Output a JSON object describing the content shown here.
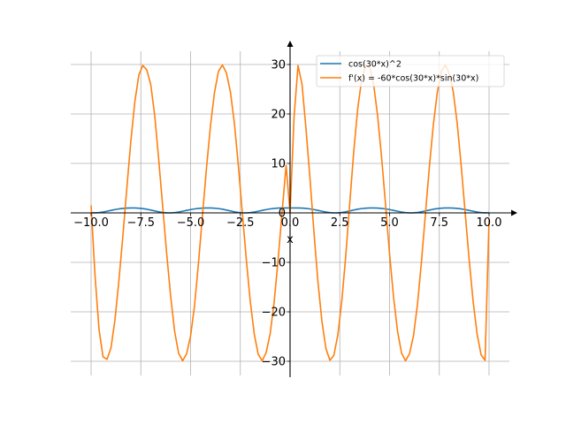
{
  "chart_data": {
    "type": "line",
    "title": "",
    "xlabel": "x",
    "ylabel": "",
    "xlim": [
      -10.0,
      10.0
    ],
    "ylim": [
      -30,
      30
    ],
    "x_ticks": [
      -10.0,
      -7.5,
      -5.0,
      -2.5,
      0.0,
      2.5,
      5.0,
      7.5,
      10.0
    ],
    "x_tick_labels": [
      "−10.0",
      "−7.5",
      "−5.0",
      "−2.5",
      "0.0",
      "2.5",
      "5.0",
      "7.5",
      "10.0"
    ],
    "y_ticks": [
      -30,
      -20,
      -10,
      0,
      10,
      20,
      30
    ],
    "y_tick_labels": [
      "−30",
      "−20",
      "−10",
      "0",
      "10",
      "20",
      "30"
    ],
    "grid": true,
    "legend_position": "top-right",
    "series": [
      {
        "name": "cos(30*x)^2",
        "color": "#1f77b4",
        "expression": "cos(30*x)^2",
        "x": [
          -10.0,
          -9.8,
          -9.6,
          -9.4,
          -9.2,
          -9.0,
          -8.8,
          -8.6,
          -8.4,
          -8.2,
          -8.0,
          -7.8,
          -7.6,
          -7.4,
          -7.2,
          -7.0,
          -6.8,
          -6.6,
          -6.4,
          -6.2,
          -6.0,
          -5.8,
          -5.6,
          -5.4,
          -5.2,
          -5.0,
          -4.8,
          -4.6,
          -4.4,
          -4.2,
          -4.0,
          -3.8,
          -3.6,
          -3.4,
          -3.2,
          -3.0,
          -2.8,
          -2.6,
          -2.4,
          -2.2,
          -2.0,
          -1.8,
          -1.6,
          -1.4,
          -1.2,
          -1.0,
          -0.8,
          -0.6,
          -0.4,
          -0.2,
          0.0,
          0.2,
          0.4,
          0.6,
          0.8,
          1.0,
          1.2,
          1.4,
          1.6,
          1.8,
          2.0,
          2.2,
          2.4,
          2.6,
          2.8,
          3.0,
          3.2,
          3.4,
          3.6,
          3.8,
          4.0,
          4.2,
          4.4,
          4.6,
          4.8,
          5.0,
          5.2,
          5.4,
          5.6,
          5.8,
          6.0,
          6.2,
          6.4,
          6.6,
          6.8,
          7.0,
          7.2,
          7.4,
          7.6,
          7.8,
          8.0,
          8.2,
          8.4,
          8.6,
          8.8,
          9.0,
          9.2,
          9.4,
          9.6,
          9.8,
          10.0
        ],
        "y": [
          0.0237,
          0.0027,
          0.0572,
          0.1754,
          0.3342,
          0.5044,
          0.6675,
          0.8063,
          0.9098,
          0.9726,
          0.9977,
          0.9911,
          0.9486,
          0.8668,
          0.7414,
          0.5738,
          0.3919,
          0.2223,
          0.09,
          0.0147,
          0.002,
          0.0568,
          0.1746,
          0.3332,
          0.5034,
          0.6666,
          0.8056,
          0.9094,
          0.9724,
          0.9976,
          0.9912,
          0.9489,
          0.8674,
          0.7422,
          0.5748,
          0.3929,
          0.2231,
          0.0905,
          0.0149,
          0.0019,
          0.0567,
          0.1744,
          0.333,
          0.5031,
          0.6663,
          0.8054,
          0.9093,
          0.9723,
          0.9976,
          0.9912,
          1.0,
          0.9912,
          0.9976,
          0.9723,
          0.9093,
          0.8054,
          0.6663,
          0.5031,
          0.333,
          0.1744,
          0.0567,
          0.0019,
          0.0149,
          0.0905,
          0.2231,
          0.3929,
          0.5748,
          0.7422,
          0.8674,
          0.9489,
          0.9912,
          0.9976,
          0.9724,
          0.9094,
          0.8056,
          0.6666,
          0.5034,
          0.3332,
          0.1746,
          0.0568,
          0.002,
          0.0147,
          0.09,
          0.2223,
          0.3919,
          0.5738,
          0.7414,
          0.8668,
          0.9486,
          0.9911,
          0.9977,
          0.9726,
          0.9098,
          0.8063,
          0.6675,
          0.5044,
          0.3342,
          0.1754,
          0.0572,
          0.0027,
          0.0237
        ]
      },
      {
        "name": "f'(x) = -60*cos(30*x)*sin(30*x)",
        "color": "#ff7f0e",
        "expression": "-60*cos(30*x)*sin(30*x)",
        "x": [
          -10.0,
          -9.8,
          -9.6,
          -9.4,
          -9.2,
          -9.0,
          -8.8,
          -8.6,
          -8.4,
          -8.2,
          -8.0,
          -7.8,
          -7.6,
          -7.4,
          -7.2,
          -7.0,
          -6.8,
          -6.6,
          -6.4,
          -6.2,
          -6.0,
          -5.8,
          -5.6,
          -5.4,
          -5.2,
          -5.0,
          -4.8,
          -4.6,
          -4.4,
          -4.2,
          -4.0,
          -3.8,
          -3.6,
          -3.4,
          -3.2,
          -3.0,
          -2.8,
          -2.6,
          -2.4,
          -2.2,
          -2.0,
          -1.8,
          -1.6,
          -1.4,
          -1.2,
          -1.0,
          -0.8,
          -0.6,
          -0.4,
          -0.2,
          0.0,
          0.2,
          0.4,
          0.6,
          0.8,
          1.0,
          1.2,
          1.4,
          1.6,
          1.8,
          2.0,
          2.2,
          2.4,
          2.6,
          2.8,
          3.0,
          3.2,
          3.4,
          3.6,
          3.8,
          4.0,
          4.2,
          4.4,
          4.6,
          4.8,
          5.0,
          5.2,
          5.4,
          5.6,
          5.8,
          6.0,
          6.2,
          6.4,
          6.6,
          6.8,
          7.0,
          7.2,
          7.4,
          7.6,
          7.8,
          8.0,
          8.2,
          8.4,
          8.6,
          8.8,
          9.0,
          9.2,
          9.4,
          9.6,
          9.8,
          10.0
        ],
        "y": [
          1.5,
          -12.8,
          -23.6,
          -29.1,
          -29.6,
          -27.3,
          -21.6,
          -13.6,
          -4.5,
          5.2,
          14.6,
          22.5,
          27.9,
          29.8,
          28.9,
          25.9,
          19.6,
          10.7,
          1.2,
          -8.3,
          -16.9,
          -24.0,
          -28.4,
          -29.9,
          -28.5,
          -24.9,
          -18.7,
          -10.0,
          -0.4,
          9.1,
          17.6,
          24.3,
          28.6,
          29.9,
          28.3,
          24.5,
          18.2,
          9.6,
          0.0,
          -9.4,
          -17.9,
          -24.5,
          -28.6,
          -29.9,
          -28.2,
          -24.4,
          -18.0,
          -9.4,
          0.2,
          9.6,
          0.0,
          19.4,
          29.8,
          26.0,
          17.0,
          7.0,
          -3.9,
          -13.9,
          -21.9,
          -27.4,
          -29.8,
          -28.8,
          -24.7,
          -17.8,
          -8.6,
          2.0,
          12.4,
          21.1,
          27.0,
          29.8,
          29.5,
          26.0,
          19.6,
          11.2,
          1.6,
          -8.3,
          -17.0,
          -23.9,
          -28.3,
          -29.9,
          -28.5,
          -24.9,
          -18.6,
          -10.0,
          -0.3,
          9.3,
          17.8,
          24.4,
          28.6,
          29.9,
          28.2,
          24.5,
          18.1,
          9.5,
          0.0,
          -9.5,
          -17.9,
          -24.5,
          -28.7,
          -29.8,
          -1.3
        ]
      }
    ]
  }
}
